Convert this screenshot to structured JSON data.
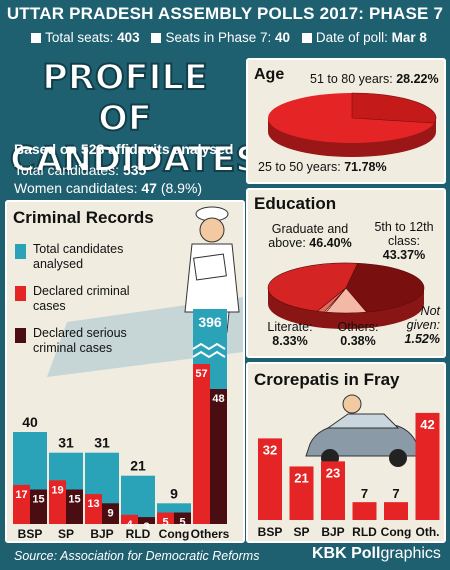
{
  "header": {
    "title": "UTTAR PRADESH ASSEMBLY POLLS 2017: PHASE 7",
    "total_seats_label": "Total seats:",
    "total_seats": "403",
    "phase_seats_label": "Seats in Phase 7:",
    "phase_seats": "40",
    "poll_date_label": "Date of poll:",
    "poll_date": "Mar 8"
  },
  "profile": {
    "line1": "PROFILE OF",
    "line2": "CANDIDATES",
    "based_on": "Based on 528 affidavits analysed",
    "total_label": "Total candidates:",
    "total_value": "535",
    "women_label": "Women candidates:",
    "women_value": "47",
    "women_pct": "(8.9%)"
  },
  "footer": {
    "source": "Source: Association for Democratic Reforms",
    "brand_prefix": "KBK Poll",
    "brand_suffix": "graphics"
  },
  "colors": {
    "teal": "#2aa3b8",
    "red": "#e52525",
    "maroon": "#4a0d12",
    "background": "#1e5f70",
    "panel": "#f0ede0"
  },
  "chart_data": [
    {
      "type": "bar",
      "title": "Criminal Records",
      "legend": [
        "Total candidates analysed",
        "Declared criminal cases",
        "Declared serious criminal cases"
      ],
      "categories": [
        "BSP",
        "SP",
        "BJP",
        "RLD",
        "Cong",
        "Others"
      ],
      "series": [
        {
          "name": "Total candidates analysed",
          "values": [
            40,
            31,
            31,
            21,
            9,
            396
          ]
        },
        {
          "name": "Declared criminal cases",
          "values": [
            17,
            19,
            13,
            4,
            5,
            57
          ]
        },
        {
          "name": "Declared serious criminal cases",
          "values": [
            15,
            15,
            9,
            3,
            5,
            48
          ]
        }
      ]
    },
    {
      "type": "pie",
      "title": "Age",
      "slices": [
        {
          "label": "51 to 80 years:",
          "value": 28.22,
          "text": "28.22%"
        },
        {
          "label": "25 to 50 years:",
          "value": 71.78,
          "text": "71.78%"
        }
      ]
    },
    {
      "type": "pie",
      "title": "Education",
      "slices": [
        {
          "label": "Graduate and above:",
          "value": 46.4,
          "text": "46.40%"
        },
        {
          "label": "5th to 12th class:",
          "value": 43.37,
          "text": "43.37%"
        },
        {
          "label": "Literate:",
          "value": 8.33,
          "text": "8.33%"
        },
        {
          "label": "Others:",
          "value": 0.38,
          "text": "0.38%"
        },
        {
          "label": "Not given:",
          "value": 1.52,
          "text": "1.52%"
        }
      ]
    },
    {
      "type": "bar",
      "title": "Crorepatis in Fray",
      "categories": [
        "BSP",
        "SP",
        "BJP",
        "RLD",
        "Cong",
        "Oth."
      ],
      "values": [
        32,
        21,
        23,
        7,
        7,
        42
      ]
    }
  ]
}
